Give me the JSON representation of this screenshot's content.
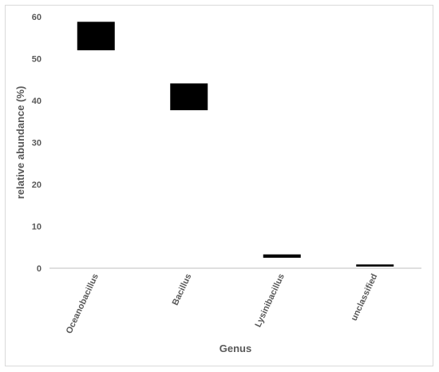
{
  "chart_data": {
    "type": "box",
    "xlabel": "Genus",
    "ylabel": "relative abundance (%)",
    "ylim": [
      0,
      60
    ],
    "yticks": [
      0,
      10,
      20,
      30,
      40,
      50,
      60
    ],
    "categories": [
      "Oceanobacillus",
      "Bacillus",
      "Lysinibacillus",
      "unclassified"
    ],
    "ranges": [
      {
        "low": 52.0,
        "high": 58.8
      },
      {
        "low": 37.7,
        "high": 44.1
      },
      {
        "low": 2.5,
        "high": 3.3
      },
      {
        "low": 0.4,
        "high": 0.9
      }
    ],
    "grid": false,
    "legend": "none",
    "colors": {
      "box": "#000000",
      "axis": "#bfbfbf",
      "text": "#595959"
    }
  }
}
